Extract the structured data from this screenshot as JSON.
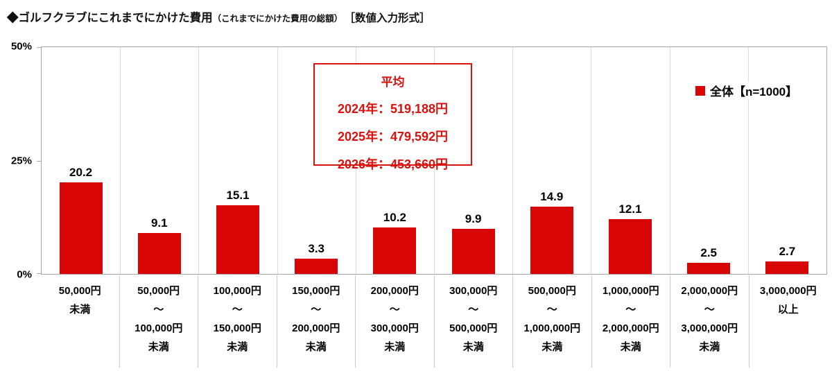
{
  "title": {
    "main": "◆ゴルフクラブにこれまでにかけた費用",
    "sub": "（これまでにかけた費用の総額）",
    "suffix": "［数値入力形式］"
  },
  "legend": {
    "label": "全体【n=1000】"
  },
  "annotation": {
    "title": "平均",
    "lines": [
      "2024年：519,188円",
      "2025年：479,592円",
      "2026年：453,660円"
    ]
  },
  "colors": {
    "bar": "#d70505",
    "accent": "#d9120d",
    "grid": "#dcdcdc",
    "axis": "#a6a6a6"
  },
  "y_axis": {
    "ticks": [
      "50%",
      "25%",
      "0%"
    ],
    "max": 50
  },
  "chart_data": {
    "type": "bar",
    "title": "ゴルフクラブにこれまでにかけた費用（これまでにかけた費用の総額）［数値入力形式］",
    "series_name": "全体【n=1000】",
    "categories": [
      [
        "50,000円",
        "未満"
      ],
      [
        "50,000円",
        "～",
        "100,000円",
        "未満"
      ],
      [
        "100,000円",
        "～",
        "150,000円",
        "未満"
      ],
      [
        "150,000円",
        "～",
        "200,000円",
        "未満"
      ],
      [
        "200,000円",
        "～",
        "300,000円",
        "未満"
      ],
      [
        "300,000円",
        "～",
        "500,000円",
        "未満"
      ],
      [
        "500,000円",
        "～",
        "1,000,000円",
        "未満"
      ],
      [
        "1,000,000円",
        "～",
        "2,000,000円",
        "未満"
      ],
      [
        "2,000,000円",
        "～",
        "3,000,000円",
        "未満"
      ],
      [
        "3,000,000円",
        "以上"
      ]
    ],
    "values": [
      20.2,
      9.1,
      15.1,
      3.3,
      10.2,
      9.9,
      14.9,
      12.1,
      2.5,
      2.7
    ],
    "ylabel": "%",
    "ylim": [
      0,
      50
    ],
    "grid": "vertical category separators only",
    "legend_position": "top-right inside plot",
    "annotation_position": "top-center inside plot"
  }
}
